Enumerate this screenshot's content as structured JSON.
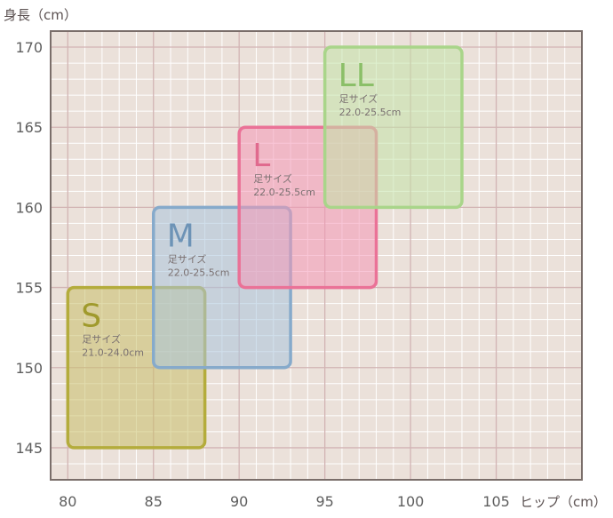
{
  "chart_data": {
    "type": "range-boxes",
    "ylabel": "身長（cm）",
    "xlabel": "ヒップ（cm）",
    "xlim": [
      79,
      110
    ],
    "ylim": [
      143,
      171
    ],
    "xticks": [
      80,
      85,
      90,
      95,
      100,
      105
    ],
    "yticks": [
      145,
      150,
      155,
      160,
      165,
      170
    ],
    "grid": true,
    "sizes": [
      {
        "label": "S",
        "foot_label": "足サイズ",
        "foot_range": "21.0-24.0cm",
        "hip_range": [
          80,
          88
        ],
        "height_range": [
          145,
          155
        ],
        "color": "#b4ac3c",
        "fill": "#c8c06a",
        "text_color": "#a09a2c"
      },
      {
        "label": "M",
        "foot_label": "足サイズ",
        "foot_range": "22.0-25.5cm",
        "hip_range": [
          85,
          93
        ],
        "height_range": [
          150,
          160
        ],
        "color": "#86aacb",
        "fill": "#a9c4dd",
        "text_color": "#6d93b6"
      },
      {
        "label": "L",
        "foot_label": "足サイズ",
        "foot_range": "22.0-25.5cm",
        "hip_range": [
          90,
          98
        ],
        "height_range": [
          155,
          165
        ],
        "color": "#ea7297",
        "fill": "#f498b6",
        "text_color": "#e06a8e"
      },
      {
        "label": "LL",
        "foot_label": "足サイズ",
        "foot_range": "22.0-25.5cm",
        "hip_range": [
          95,
          103
        ],
        "height_range": [
          160,
          170
        ],
        "color": "#a9d58a",
        "fill": "#c2e3a8",
        "text_color": "#8bbf68"
      }
    ]
  }
}
